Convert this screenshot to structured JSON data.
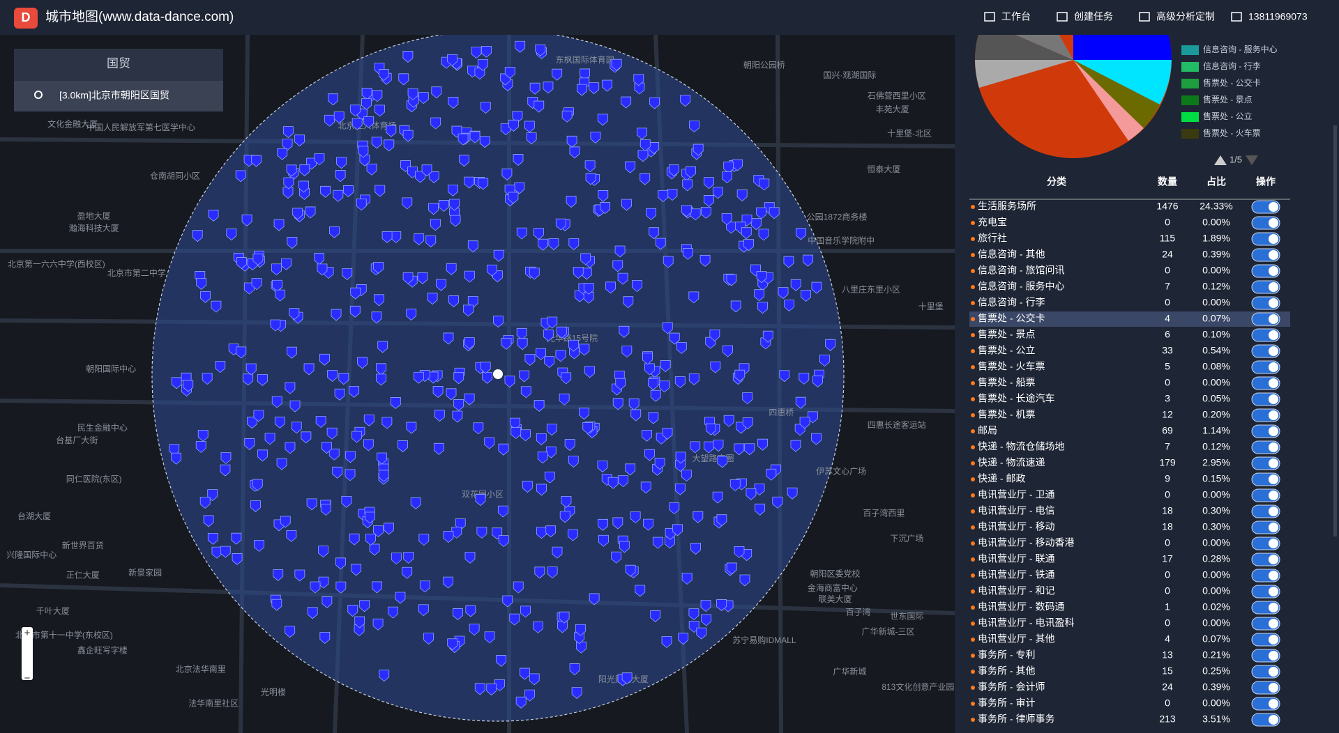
{
  "header": {
    "title": "城市地图(www.data-dance.com)",
    "nav": [
      "工作台",
      "创建任务",
      "高级分析定制",
      "13811969073"
    ]
  },
  "search": {
    "title": "国贸",
    "result": "[3.0km]北京市朝阳区国贸"
  },
  "legend": {
    "items": [
      {
        "name": "信息咨询 - 服务中心",
        "color": "#1a9a9a"
      },
      {
        "name": "信息咨询 - 行李",
        "color": "#22bb66"
      },
      {
        "name": "售票处 - 公交卡",
        "color": "#1e9e3e"
      },
      {
        "name": "售票处 - 景点",
        "color": "#0d7a1a"
      },
      {
        "name": "售票处 - 公立",
        "color": "#00dd44"
      },
      {
        "name": "售票处 - 火车票",
        "color": "#3a3a10"
      }
    ],
    "page": "1/5"
  },
  "table": {
    "columns": [
      "分类",
      "数量",
      "占比",
      "操作"
    ],
    "highlight": 7,
    "rows": [
      [
        "生活服务场所",
        "1476",
        "24.33%"
      ],
      [
        "充电宝",
        "0",
        "0.00%"
      ],
      [
        "旅行社",
        "115",
        "1.89%"
      ],
      [
        "信息咨询 - 其他",
        "24",
        "0.39%"
      ],
      [
        "信息咨询 - 旅馆问讯",
        "0",
        "0.00%"
      ],
      [
        "信息咨询 - 服务中心",
        "7",
        "0.12%"
      ],
      [
        "信息咨询 - 行李",
        "0",
        "0.00%"
      ],
      [
        "售票处 - 公交卡",
        "4",
        "0.07%"
      ],
      [
        "售票处 - 景点",
        "6",
        "0.10%"
      ],
      [
        "售票处 - 公立",
        "33",
        "0.54%"
      ],
      [
        "售票处 - 火车票",
        "5",
        "0.08%"
      ],
      [
        "售票处 - 船票",
        "0",
        "0.00%"
      ],
      [
        "售票处 - 长途汽车",
        "3",
        "0.05%"
      ],
      [
        "售票处 - 机票",
        "12",
        "0.20%"
      ],
      [
        "邮局",
        "69",
        "1.14%"
      ],
      [
        "快递 - 物流仓储场地",
        "7",
        "0.12%"
      ],
      [
        "快递 - 物流速递",
        "179",
        "2.95%"
      ],
      [
        "快递 - 邮政",
        "9",
        "0.15%"
      ],
      [
        "电讯营业厅 - 卫通",
        "0",
        "0.00%"
      ],
      [
        "电讯营业厅 - 电信",
        "18",
        "0.30%"
      ],
      [
        "电讯营业厅 - 移动",
        "18",
        "0.30%"
      ],
      [
        "电讯营业厅 - 移动香港",
        "0",
        "0.00%"
      ],
      [
        "电讯营业厅 - 联通",
        "17",
        "0.28%"
      ],
      [
        "电讯营业厅 - 铁通",
        "0",
        "0.00%"
      ],
      [
        "电讯营业厅 - 和记",
        "0",
        "0.00%"
      ],
      [
        "电讯营业厅 - 数码通",
        "1",
        "0.02%"
      ],
      [
        "电讯营业厅 - 电讯盈科",
        "0",
        "0.00%"
      ],
      [
        "电讯营业厅 - 其他",
        "4",
        "0.07%"
      ],
      [
        "事务所 - 专利",
        "13",
        "0.21%"
      ],
      [
        "事务所 - 其他",
        "15",
        "0.25%"
      ],
      [
        "事务所 - 会计师",
        "24",
        "0.39%"
      ],
      [
        "事务所 - 审计",
        "0",
        "0.00%"
      ],
      [
        "事务所 - 律师事务",
        "213",
        "3.51%"
      ]
    ]
  },
  "map": {
    "labels": [
      "北京工人体育场",
      "东枫国际体育园",
      "朝阳公园桥",
      "国兴·观湖国际",
      "石佛营西里小区",
      "丰苑大厦",
      "十里堡-北区",
      "恒泰大厦",
      "公园1872商务楼",
      "中国音乐学院附中",
      "八里庄东里小区",
      "十里堡",
      "四惠桥",
      "四惠长途客运站",
      "伊苏文心广场",
      "百子湾西里",
      "下沉广场",
      "朝阳区委党校",
      "金海商富中心",
      "联美大厦",
      "世东国际",
      "广华新城-三区",
      "百子湾",
      "苏宁易购IDMALL",
      "广华新城",
      "813文化创意产业园",
      "北京第一六六中学(西校区)",
      "北京市第二中学",
      "朝阳国际中心",
      "民生金融中心",
      "台基厂大街",
      "同仁医院(东区)",
      "台湖大厦",
      "新世界百货",
      "兴隆国际中心",
      "正仁大厦",
      "新景家园",
      "文化金融大厦",
      "中国人民解放军第七医学中心",
      "仓南胡同小区",
      "盈地大厦",
      "瀚海科技大厦",
      "北京市第十一中学(东校区)",
      "千叶大厦",
      "鑫企旺写字楼",
      "北京法华南里",
      "光明楼",
      "法华南里社区",
      "双花园小区",
      "光华路15号院",
      "大望路商圈",
      "阳光财富大厦"
    ]
  }
}
